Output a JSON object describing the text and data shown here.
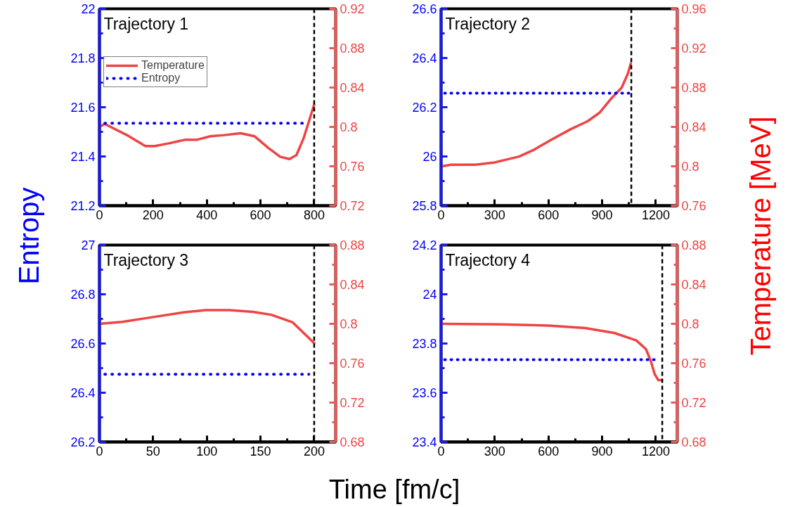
{
  "chart_data": [
    {
      "type": "line",
      "title": "Trajectory 1",
      "ylabel": "Entropy",
      "xlim": [
        0,
        880
      ],
      "xticks": [
        0,
        200,
        400,
        600,
        800
      ],
      "ylim": [
        21.2,
        22
      ],
      "yticks": [
        21.2,
        21.4,
        21.6,
        21.8,
        22
      ],
      "y2lim": [
        0.72,
        0.92
      ],
      "y2ticks": [
        0.72,
        0.76,
        0.8,
        0.84,
        0.88,
        0.92
      ],
      "legend": "top left",
      "ref_lines": [
        {
          "axis": "x",
          "value": 800,
          "color": "#000000",
          "line_style": "dashed"
        }
      ],
      "series": [
        {
          "name": "Temperature",
          "axis": "y2",
          "color": "#ee4444",
          "line_style": "solid",
          "x": [
            0,
            20,
            102,
            171,
            206,
            258,
            318,
            362,
            413,
            465,
            526,
            578,
            630,
            673,
            708,
            734,
            760,
            785,
            800
          ],
          "values": [
            0.8,
            0.803,
            0.7917,
            0.7805,
            0.7805,
            0.7833,
            0.7869,
            0.7869,
            0.7905,
            0.7917,
            0.7936,
            0.7905,
            0.7785,
            0.7697,
            0.7673,
            0.7714,
            0.7881,
            0.8096,
            0.8228
          ]
        },
        {
          "name": "Entropy",
          "axis": "y",
          "color": "#0000ff",
          "line_style": "dotted",
          "x": [
            20,
            760
          ],
          "values": [
            21.535,
            21.535
          ]
        }
      ]
    },
    {
      "type": "line",
      "title": "Trajectory 2",
      "y2label": "Temperature [MeV]",
      "xlim": [
        0,
        1320
      ],
      "xticks": [
        0,
        300,
        600,
        900,
        1200
      ],
      "ylim": [
        25.8,
        26.6
      ],
      "yticks": [
        25.8,
        26,
        26.2,
        26.4,
        26.6
      ],
      "y2lim": [
        0.76,
        0.96
      ],
      "y2ticks": [
        0.76,
        0.8,
        0.84,
        0.88,
        0.92,
        0.96
      ],
      "ref_lines": [
        {
          "axis": "x",
          "value": 1063,
          "color": "#000000",
          "line_style": "dashed"
        }
      ],
      "series": [
        {
          "axis": "y2",
          "color": "#ee4444",
          "line_style": "solid",
          "x": [
            0,
            55,
            191,
            300,
            436,
            518,
            614,
            723,
            818,
            886,
            955,
            1009,
            1043,
            1060
          ],
          "values": [
            0.7998,
            0.8016,
            0.8016,
            0.804,
            0.8099,
            0.8167,
            0.8268,
            0.8376,
            0.8457,
            0.8545,
            0.8697,
            0.8798,
            0.8937,
            0.9043
          ]
        },
        {
          "axis": "y",
          "color": "#0000ff",
          "line_style": "dotted",
          "x": [
            20,
            1050
          ],
          "values": [
            26.257,
            26.257
          ]
        }
      ]
    },
    {
      "type": "line",
      "title": "Trajectory 3",
      "xlabel": "Time [fm/c]",
      "xlim": [
        0,
        220
      ],
      "xticks": [
        0,
        50,
        100,
        150,
        200
      ],
      "ylim": [
        26.2,
        27
      ],
      "yticks": [
        26.2,
        26.4,
        26.6,
        26.8,
        27
      ],
      "y2lim": [
        0.68,
        0.88
      ],
      "y2ticks": [
        0.68,
        0.72,
        0.76,
        0.8,
        0.84,
        0.88
      ],
      "ref_lines": [
        {
          "axis": "x",
          "value": 200,
          "color": "#000000",
          "line_style": "dashed"
        }
      ],
      "series": [
        {
          "axis": "y2",
          "color": "#ee4444",
          "line_style": "solid",
          "x": [
            0,
            21,
            49,
            78,
            99,
            121,
            143,
            160,
            180,
            200
          ],
          "values": [
            0.8,
            0.8019,
            0.8067,
            0.8116,
            0.814,
            0.814,
            0.8121,
            0.8092,
            0.8015,
            0.7803
          ]
        },
        {
          "axis": "y",
          "color": "#0000ff",
          "line_style": "dotted",
          "x": [
            5,
            195
          ],
          "values": [
            26.475,
            26.475
          ]
        }
      ]
    },
    {
      "type": "line",
      "title": "Trajectory 4",
      "xlim": [
        0,
        1320
      ],
      "xticks": [
        0,
        300,
        600,
        900,
        1200
      ],
      "ylim": [
        23.4,
        24.2
      ],
      "yticks": [
        23.4,
        23.6,
        23.8,
        24,
        24.2
      ],
      "y2lim": [
        0.68,
        0.88
      ],
      "y2ticks": [
        0.68,
        0.72,
        0.76,
        0.8,
        0.84,
        0.88
      ],
      "ref_lines": [
        {
          "axis": "x",
          "value": 1236,
          "color": "#000000",
          "line_style": "dashed"
        }
      ],
      "series": [
        {
          "axis": "y2",
          "color": "#ee4444",
          "line_style": "solid",
          "x": [
            0,
            327,
            600,
            805,
            968,
            1091,
            1145,
            1173,
            1193,
            1214,
            1234
          ],
          "values": [
            0.8,
            0.7995,
            0.7982,
            0.7957,
            0.7907,
            0.7831,
            0.7743,
            0.7616,
            0.7491,
            0.7428,
            0.7428
          ]
        },
        {
          "axis": "y",
          "color": "#0000ff",
          "line_style": "dotted",
          "x": [
            20,
            1215
          ],
          "values": [
            23.734,
            23.734
          ]
        }
      ]
    }
  ]
}
